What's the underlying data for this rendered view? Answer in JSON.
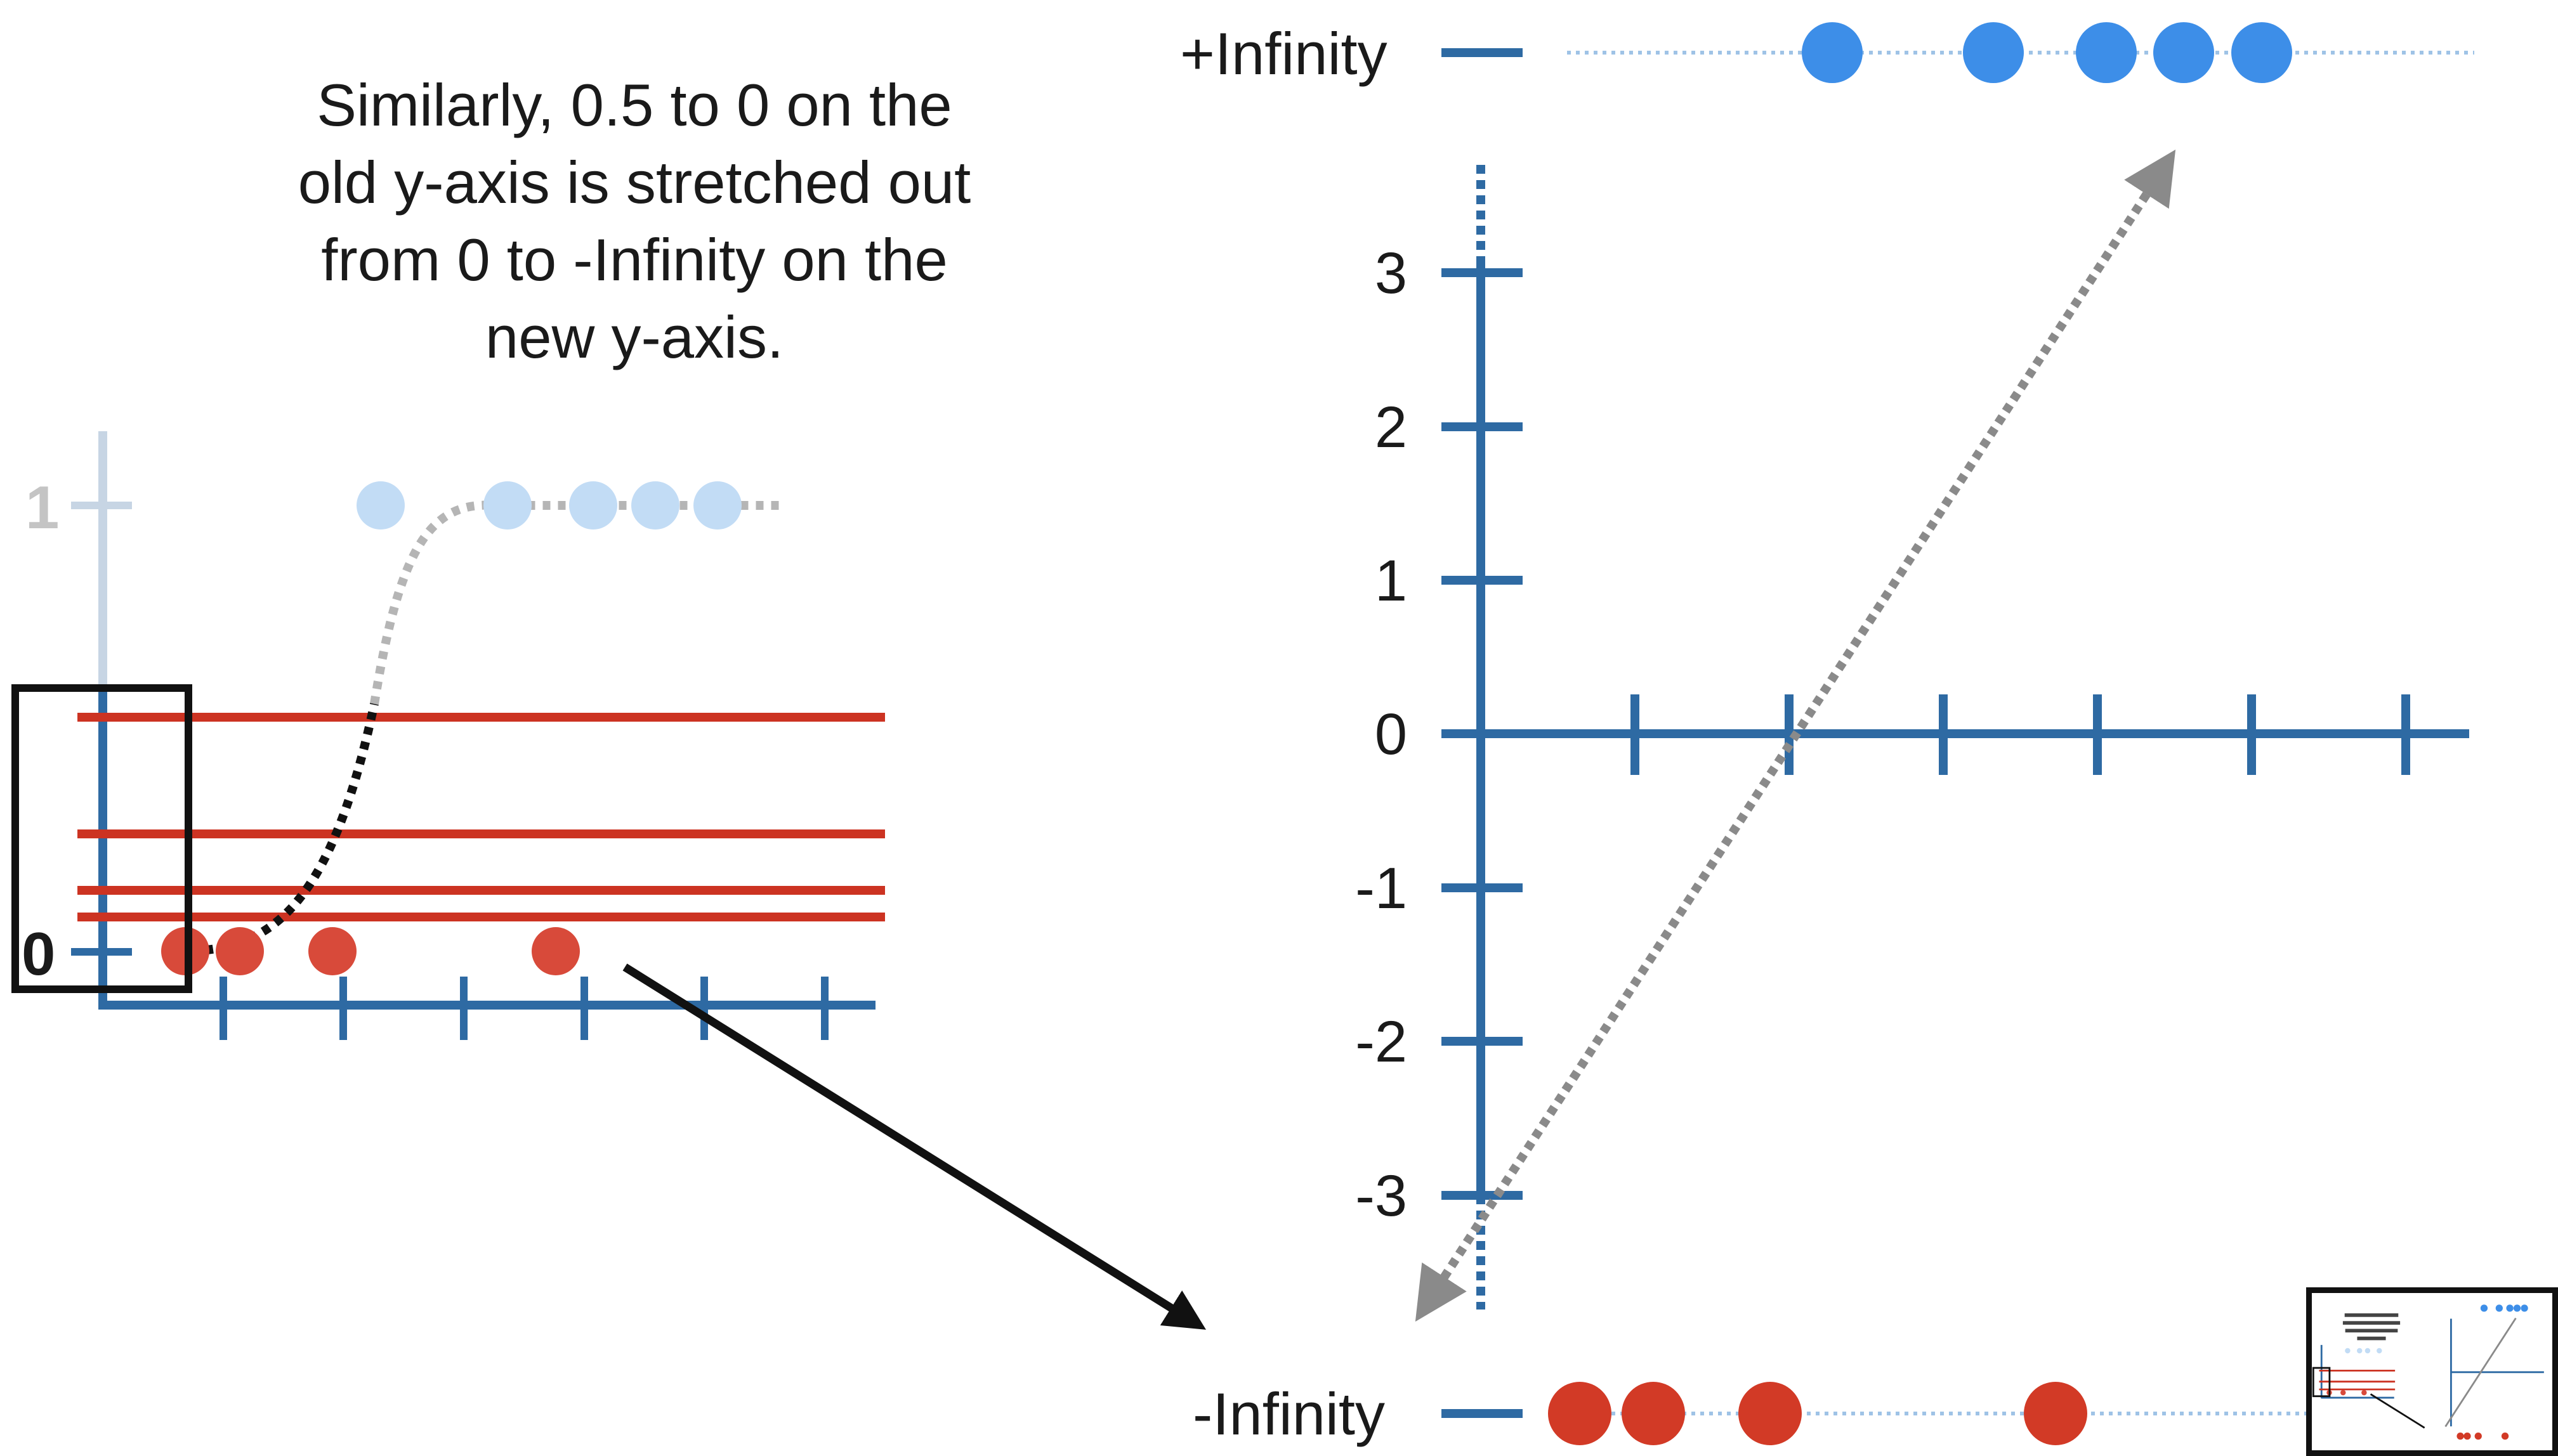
{
  "caption": {
    "lines": [
      "Similarly, 0.5 to 0 on the",
      "old y-axis is stretched out",
      "from 0 to -Infinity on the",
      "new y-axis."
    ]
  },
  "old_axis": {
    "tick_labels": [
      "1",
      "0"
    ]
  },
  "new_axis": {
    "y_ticks": [
      "3",
      "2",
      "1",
      "0",
      "-1",
      "-2",
      "-3"
    ],
    "y_tick_values": [
      3,
      2,
      1,
      0,
      -1,
      -2,
      -3
    ],
    "pos_inf_label": "+Infinity",
    "neg_inf_label": "-Infinity"
  },
  "colors": {
    "axis_blue": "#2e6aa3",
    "point_blue": "#3d8ee8",
    "point_blue_faded": "#c2dcf5",
    "point_red": "#d23a26",
    "line_red": "#cc3322",
    "guide_gray": "#9a9a9a",
    "dotted_line_blue": "#9fc3e6"
  },
  "icons": {
    "zoom_box": "selection-rectangle",
    "zoom_arrow": "arrow-down-right",
    "projection_arrow": "double-headed-dotted-arrow"
  }
}
